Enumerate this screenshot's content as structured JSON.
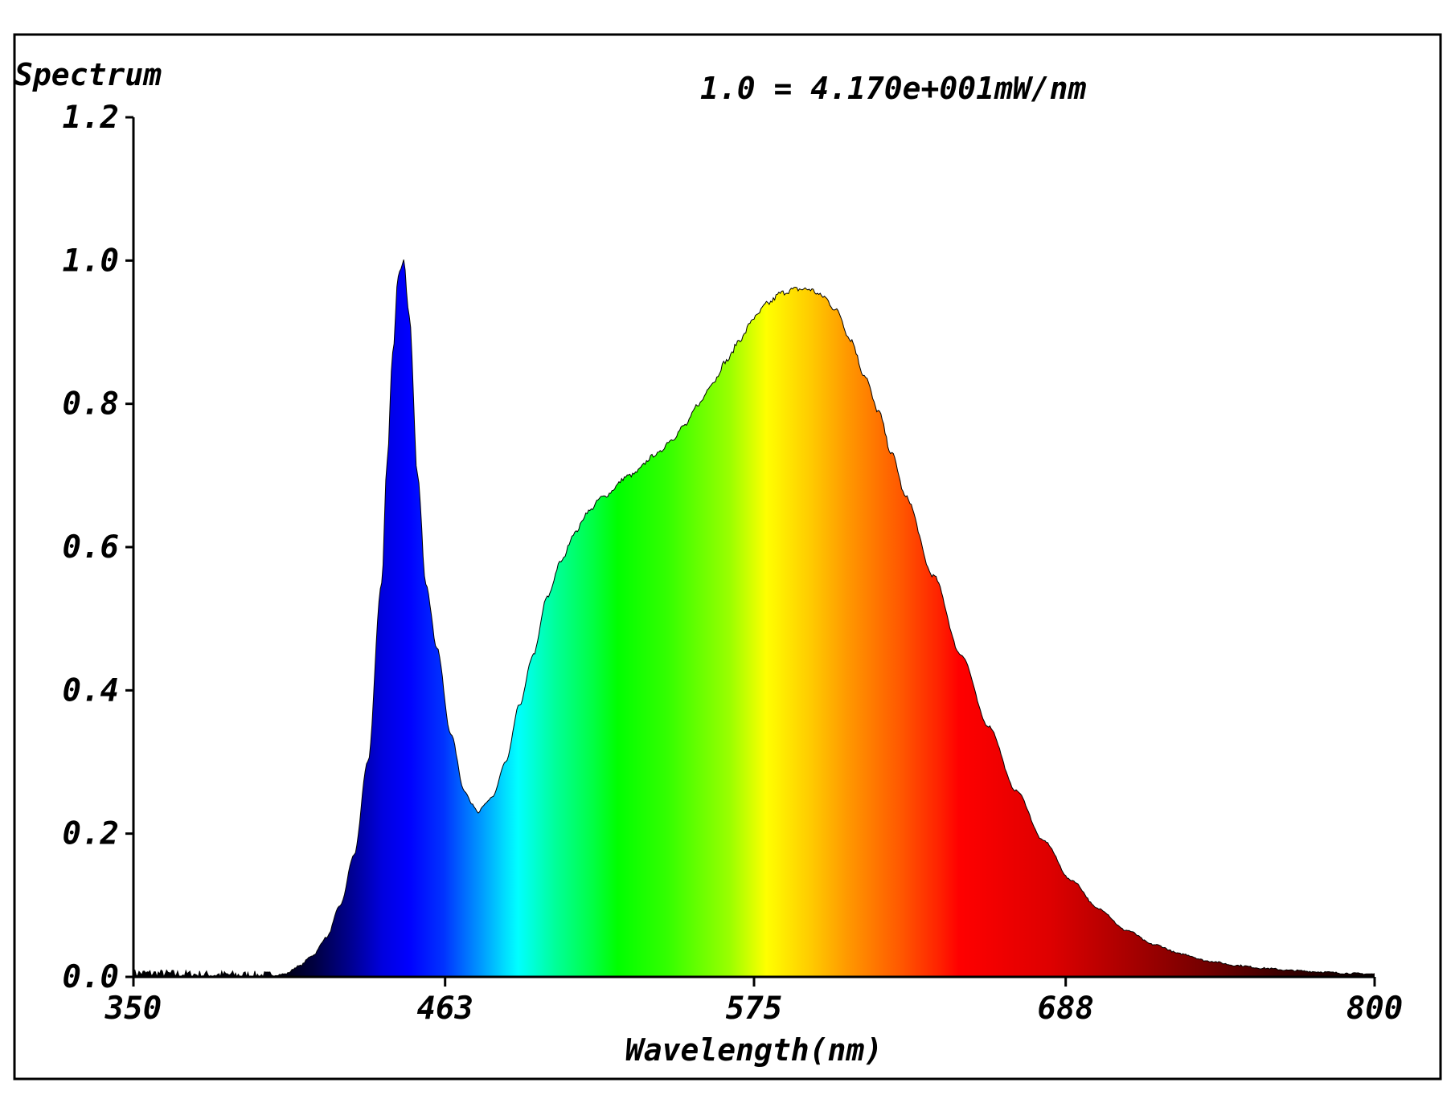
{
  "chart_data": {
    "type": "area",
    "title": "Spectrum",
    "annotation": "1.0 = 4.170e+001mW/nm",
    "xlabel": "Wavelength(nm)",
    "ylabel": "",
    "xlim": [
      350,
      800
    ],
    "ylim": [
      0,
      1.2
    ],
    "x_ticks": [
      350,
      463,
      575,
      688,
      800
    ],
    "x_tick_labels": [
      "350",
      "463",
      "575",
      "688",
      "800"
    ],
    "y_ticks": [
      0.0,
      0.2,
      0.4,
      0.6,
      0.8,
      1.0,
      1.2
    ],
    "y_tick_labels": [
      "0.0",
      "0.2",
      "0.4",
      "0.6",
      "0.8",
      "1.0",
      "1.2"
    ],
    "grid": false,
    "legend": "none",
    "fill": "visible-spectrum-gradient",
    "series": [
      {
        "x": [
          350,
          380,
          400,
          405,
          410,
          415,
          420,
          425,
          430,
          435,
          440,
          442,
          444,
          446,
          448,
          450,
          453,
          456,
          460,
          465,
          470,
          473,
          475,
          477,
          480,
          485,
          490,
          495,
          500,
          505,
          510,
          515,
          520,
          530,
          540,
          545,
          550,
          555,
          560,
          565,
          570,
          575,
          580,
          585,
          590,
          595,
          600,
          605,
          610,
          615,
          620,
          625,
          630,
          640,
          650,
          660,
          670,
          680,
          690,
          700,
          710,
          720,
          730,
          740,
          750,
          760,
          770,
          780,
          790,
          800
        ],
        "y": [
          0.005,
          0.003,
          0.002,
          0.004,
          0.015,
          0.03,
          0.055,
          0.1,
          0.17,
          0.3,
          0.55,
          0.72,
          0.87,
          0.98,
          1.0,
          0.92,
          0.7,
          0.55,
          0.46,
          0.34,
          0.26,
          0.24,
          0.23,
          0.24,
          0.25,
          0.3,
          0.38,
          0.45,
          0.53,
          0.58,
          0.62,
          0.65,
          0.67,
          0.7,
          0.73,
          0.75,
          0.77,
          0.8,
          0.83,
          0.86,
          0.89,
          0.92,
          0.94,
          0.955,
          0.96,
          0.96,
          0.95,
          0.93,
          0.89,
          0.84,
          0.79,
          0.73,
          0.67,
          0.56,
          0.45,
          0.35,
          0.26,
          0.19,
          0.135,
          0.095,
          0.065,
          0.045,
          0.032,
          0.022,
          0.016,
          0.012,
          0.009,
          0.007,
          0.005,
          0.004
        ]
      }
    ]
  }
}
